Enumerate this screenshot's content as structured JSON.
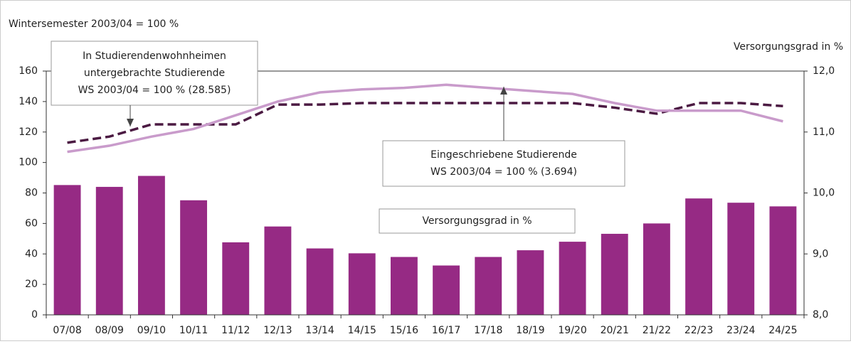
{
  "chart_data": {
    "type": "bar",
    "y_label": "Wintersemester 2003/04 = 100 %",
    "y2_label": "Versorgungsgrad in %",
    "categories": [
      "07/08",
      "08/09",
      "09/10",
      "10/11",
      "11/12",
      "12/13",
      "13/14",
      "14/15",
      "15/16",
      "16/17",
      "17/18",
      "18/19",
      "19/20",
      "20/21",
      "21/22",
      "22/23",
      "23/24",
      "24/25"
    ],
    "series": [
      {
        "type": "bar",
        "axis": "y2",
        "color": "#962a84",
        "values": [
          10.13,
          10.1,
          10.28,
          9.88,
          9.19,
          9.45,
          9.09,
          9.01,
          8.95,
          8.81,
          8.95,
          9.06,
          9.2,
          9.33,
          9.5,
          9.91,
          9.84,
          9.78
        ]
      },
      {
        "type": "line",
        "dashed": true,
        "color": "#4b1a42",
        "values": [
          113,
          117,
          125,
          125,
          125,
          138,
          138,
          139,
          139,
          139,
          139,
          139,
          139,
          136,
          132,
          139,
          139,
          137
        ]
      },
      {
        "type": "line",
        "color": "#c99bcb",
        "values": [
          107,
          111,
          117,
          122,
          131,
          140,
          146,
          148,
          149,
          151,
          149,
          147,
          145,
          139,
          134,
          134,
          134,
          127
        ]
      }
    ],
    "annotations": [
      {
        "lines": [
          "In Studierendenwohnheimen",
          "untergebrachte Studierende",
          "WS 2003/04 = 100 % (28.585)"
        ]
      },
      {
        "lines": [
          "Eingeschriebene Studierende",
          "WS 2003/04 = 100 % (3.694)"
        ]
      },
      {
        "lines": [
          "Versorgungsgrad in %"
        ]
      }
    ],
    "ylim": [
      0,
      160
    ],
    "yticks": [
      0,
      20,
      40,
      60,
      80,
      100,
      120,
      140,
      160
    ],
    "y2lim": [
      8,
      12
    ],
    "y2ticks": [
      {
        "value": 8,
        "label": "8,0"
      },
      {
        "value": 9,
        "label": "9,0"
      },
      {
        "value": 10,
        "label": "10,0"
      },
      {
        "value": 11,
        "label": "11,0"
      },
      {
        "value": 12,
        "label": "12,0"
      }
    ],
    "grid": false
  }
}
